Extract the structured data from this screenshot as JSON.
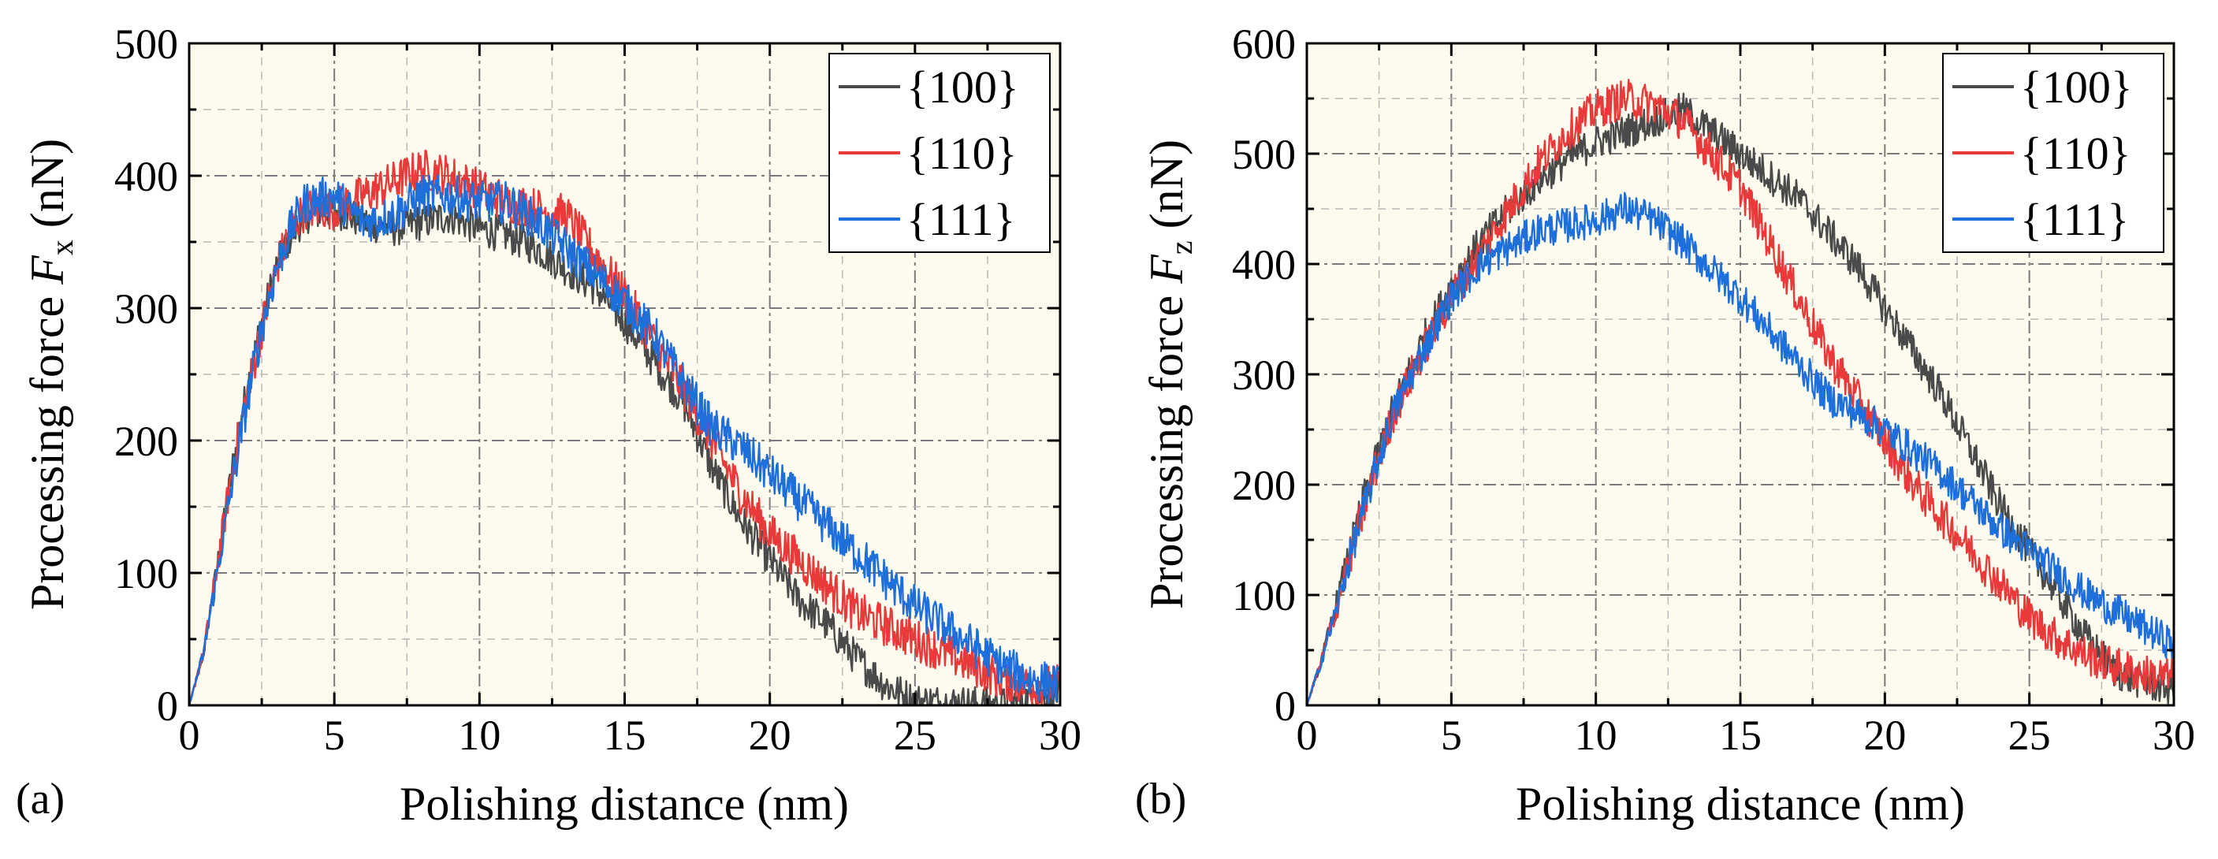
{
  "chart_data": [
    {
      "type": "line",
      "panel_label": "(a)",
      "xlabel": "Polishing distance (nm)",
      "ylabel_main": "Processing force ",
      "ylabel_var": "F",
      "ylabel_sub": "x",
      "ylabel_unit": " (nN)",
      "xlim": [
        0,
        30
      ],
      "ylim": [
        0,
        500
      ],
      "xticks": [
        0,
        5,
        10,
        15,
        20,
        25,
        30
      ],
      "yticks": [
        0,
        100,
        200,
        300,
        400,
        500
      ],
      "xtick_labels": [
        "0",
        "5",
        "10",
        "15",
        "20",
        "25",
        "30"
      ],
      "ytick_labels": [
        "0",
        "100",
        "200",
        "300",
        "400",
        "500"
      ],
      "grid": true,
      "legend_position": "top-right",
      "noise": [
        14,
        16,
        16
      ],
      "series": [
        {
          "name": "{100}",
          "color": "#4a4a4a",
          "x": [
            0,
            0.5,
            1,
            1.5,
            2,
            2.5,
            3,
            3.5,
            4,
            5,
            6,
            7,
            8,
            9,
            10,
            11,
            12,
            13,
            14,
            15,
            16,
            17,
            18,
            19,
            20,
            21,
            22,
            23,
            24,
            25,
            26,
            27,
            28,
            29,
            30
          ],
          "y": [
            0,
            40,
            110,
            180,
            240,
            290,
            330,
            355,
            370,
            375,
            365,
            360,
            365,
            370,
            360,
            355,
            345,
            330,
            315,
            290,
            260,
            230,
            180,
            140,
            110,
            80,
            60,
            35,
            15,
            3,
            2,
            1,
            0,
            5,
            10
          ]
        },
        {
          "name": "{110}",
          "color": "#e83a3a",
          "x": [
            0,
            0.5,
            1,
            1.5,
            2,
            2.5,
            3,
            3.5,
            4,
            5,
            6,
            7,
            8,
            9,
            10,
            11,
            12,
            13,
            14,
            15,
            16,
            17,
            18,
            19,
            20,
            21,
            22,
            23,
            24,
            25,
            26,
            27,
            28,
            29,
            30
          ],
          "y": [
            0,
            40,
            110,
            180,
            235,
            285,
            330,
            360,
            375,
            375,
            385,
            395,
            405,
            400,
            390,
            380,
            375,
            370,
            340,
            310,
            275,
            240,
            200,
            160,
            130,
            110,
            90,
            70,
            60,
            50,
            40,
            30,
            20,
            15,
            15
          ]
        },
        {
          "name": "{111}",
          "color": "#1f6fdb",
          "x": [
            0,
            0.5,
            1,
            1.5,
            2,
            2.5,
            3,
            3.5,
            4,
            5,
            6,
            7,
            8,
            9,
            10,
            11,
            12,
            13,
            14,
            15,
            16,
            17,
            18,
            19,
            20,
            21,
            22,
            23,
            24,
            25,
            26,
            27,
            28,
            29,
            30
          ],
          "y": [
            0,
            40,
            105,
            170,
            230,
            285,
            330,
            360,
            380,
            385,
            365,
            370,
            385,
            385,
            380,
            380,
            365,
            345,
            325,
            305,
            280,
            245,
            210,
            195,
            175,
            155,
            135,
            115,
            95,
            75,
            60,
            45,
            30,
            20,
            15
          ]
        }
      ]
    },
    {
      "type": "line",
      "panel_label": "(b)",
      "xlabel": "Polishing distance (nm)",
      "ylabel_main": "Processing force ",
      "ylabel_var": "F",
      "ylabel_sub": "z",
      "ylabel_unit": " (nN)",
      "xlim": [
        0,
        30
      ],
      "ylim": [
        0,
        600
      ],
      "xticks": [
        0,
        5,
        10,
        15,
        20,
        25,
        30
      ],
      "yticks": [
        0,
        100,
        200,
        300,
        400,
        500,
        600
      ],
      "xtick_labels": [
        "0",
        "5",
        "10",
        "15",
        "20",
        "25",
        "30"
      ],
      "ytick_labels": [
        "0",
        "100",
        "200",
        "300",
        "400",
        "500",
        "600"
      ],
      "grid": true,
      "legend_position": "top-right",
      "noise": [
        16,
        18,
        16
      ],
      "series": [
        {
          "name": "{100}",
          "color": "#4a4a4a",
          "x": [
            0,
            0.5,
            1,
            1.5,
            2,
            2.5,
            3,
            4,
            5,
            6,
            7,
            8,
            9,
            10,
            11,
            12,
            13,
            14,
            15,
            16,
            17,
            18,
            19,
            20,
            21,
            22,
            23,
            24,
            25,
            26,
            27,
            28,
            29,
            30
          ],
          "y": [
            0,
            40,
            90,
            140,
            190,
            230,
            270,
            330,
            380,
            420,
            450,
            475,
            495,
            510,
            520,
            530,
            540,
            520,
            500,
            480,
            460,
            430,
            400,
            360,
            320,
            280,
            230,
            180,
            140,
            100,
            60,
            30,
            20,
            15
          ]
        },
        {
          "name": "{110}",
          "color": "#e83a3a",
          "x": [
            0,
            0.5,
            1,
            1.5,
            2,
            2.5,
            3,
            4,
            5,
            6,
            7,
            8,
            9,
            10,
            11,
            12,
            13,
            14,
            15,
            16,
            17,
            18,
            19,
            20,
            21,
            22,
            23,
            24,
            25,
            26,
            27,
            28,
            29,
            30
          ],
          "y": [
            0,
            40,
            85,
            135,
            180,
            225,
            265,
            320,
            370,
            410,
            450,
            490,
            520,
            540,
            550,
            545,
            530,
            500,
            470,
            420,
            370,
            320,
            280,
            240,
            200,
            170,
            140,
            110,
            80,
            60,
            45,
            35,
            28,
            25
          ]
        },
        {
          "name": "{111}",
          "color": "#1f6fdb",
          "x": [
            0,
            0.5,
            1,
            1.5,
            2,
            2.5,
            3,
            4,
            5,
            6,
            7,
            8,
            9,
            10,
            11,
            12,
            13,
            14,
            15,
            16,
            17,
            18,
            19,
            20,
            21,
            22,
            23,
            24,
            25,
            26,
            27,
            28,
            29,
            30
          ],
          "y": [
            0,
            40,
            85,
            135,
            180,
            225,
            265,
            320,
            370,
            400,
            415,
            430,
            435,
            440,
            450,
            440,
            420,
            395,
            370,
            340,
            310,
            280,
            265,
            250,
            230,
            210,
            185,
            160,
            140,
            120,
            100,
            85,
            70,
            55
          ]
        }
      ]
    }
  ]
}
